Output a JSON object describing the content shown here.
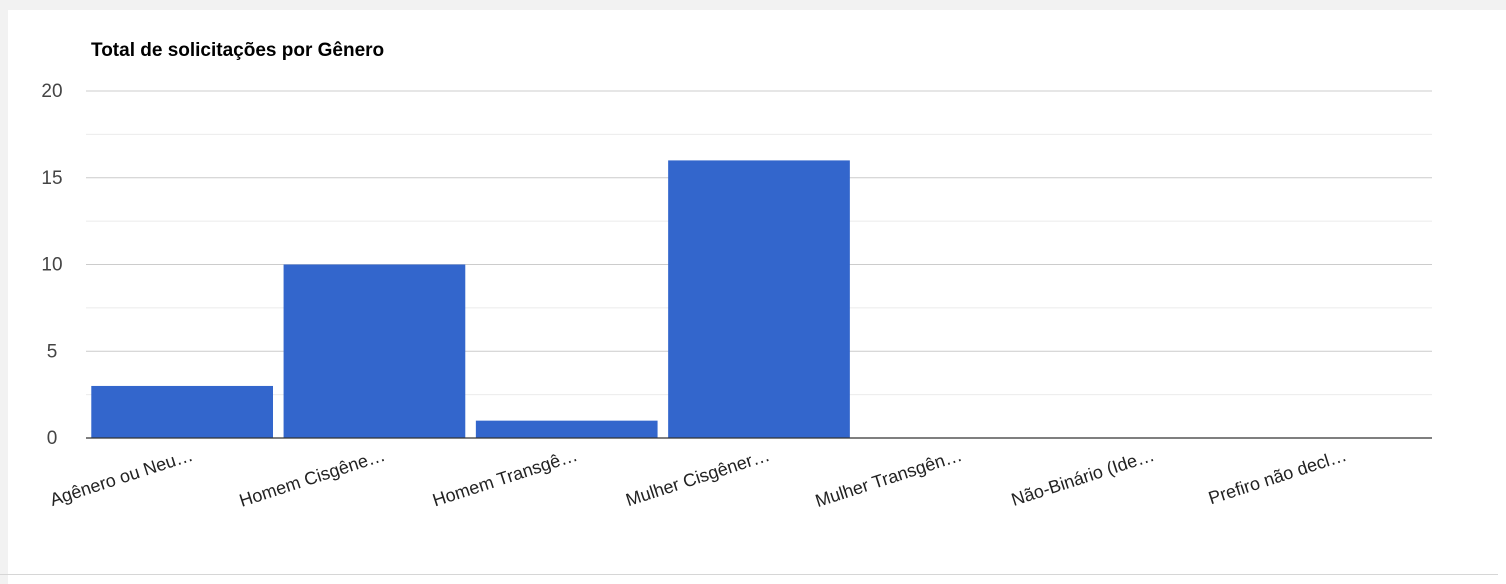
{
  "chart_data": {
    "type": "bar",
    "title": "Total de solicitações por Gênero",
    "xlabel": "",
    "ylabel": "",
    "ylim": [
      0,
      20
    ],
    "yticks": [
      "0",
      "5",
      "10",
      "15",
      "20"
    ],
    "grid": true,
    "legend": "none",
    "bar_color": "#3366cc",
    "categories": [
      "Agênero ou Neu…",
      "Homem Cisgêne…",
      "Homem Transgê…",
      "Mulher Cisgêner…",
      "Mulher Transgên…",
      "Não-Binário (Ide…",
      "Prefiro não decl…"
    ],
    "values": [
      3,
      10,
      1,
      16,
      0,
      0,
      0
    ]
  }
}
